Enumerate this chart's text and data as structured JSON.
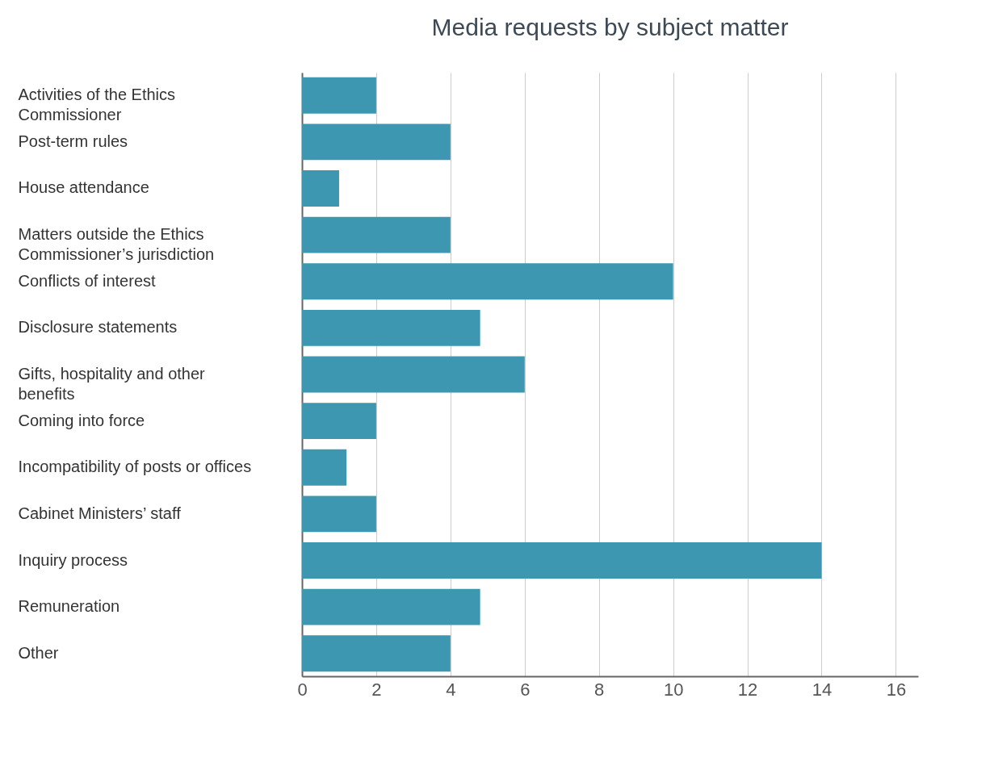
{
  "chart_data": {
    "type": "bar",
    "title": "Media requests by subject matter",
    "orientation": "horizontal",
    "categories": [
      "Activities of the Ethics Commissioner",
      "Post-term rules",
      "House attendance",
      "Matters outside the Ethics Commissioner’s jurisdiction",
      "Conflicts of interest",
      "Disclosure statements",
      "Gifts, hospitality and other benefits",
      "Coming into force",
      "Incompatibility of posts or offices",
      "Cabinet Ministers’ staff",
      "Inquiry process",
      "Remuneration",
      "Other"
    ],
    "values": [
      2,
      4,
      1,
      4,
      10,
      4.8,
      6,
      2,
      1.2,
      2,
      14,
      4.8,
      4
    ],
    "color": "#3d97b0",
    "xlim": [
      0,
      16.6
    ],
    "xticks": [
      0,
      2,
      4,
      6,
      8,
      10,
      12,
      14,
      16
    ],
    "grid": "x"
  }
}
